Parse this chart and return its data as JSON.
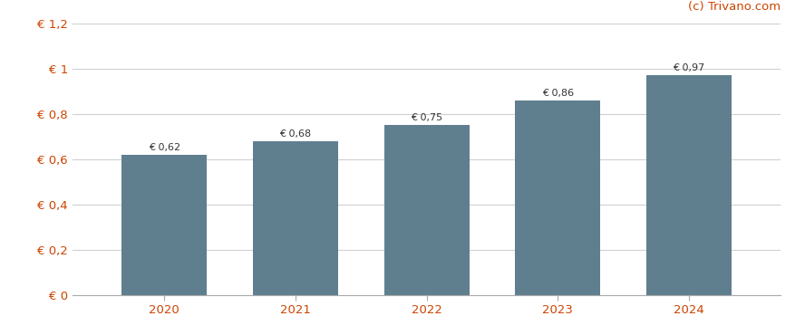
{
  "categories": [
    "2020",
    "2021",
    "2022",
    "2023",
    "2024"
  ],
  "values": [
    0.62,
    0.68,
    0.75,
    0.86,
    0.97
  ],
  "labels": [
    "€ 0,62",
    "€ 0,68",
    "€ 0,75",
    "€ 0,86",
    "€ 0,97"
  ],
  "bar_color": "#5f7f8f",
  "ylim": [
    0,
    1.2
  ],
  "yticks": [
    0,
    0.2,
    0.4,
    0.6,
    0.8,
    1.0,
    1.2
  ],
  "ytick_labels": [
    "€ 0",
    "€ 0,2",
    "€ 0,4",
    "€ 0,6",
    "€ 0,8",
    "€ 1",
    "€ 1,2"
  ],
  "background_color": "#ffffff",
  "grid_color": "#d0d0d0",
  "watermark": "(c) Trivano.com",
  "watermark_color": "#cc4400",
  "tick_color": "#cc4400",
  "label_color": "#333333",
  "label_fontsize": 8.0,
  "tick_fontsize": 9.5,
  "watermark_fontsize": 9.5,
  "bar_width": 0.65
}
